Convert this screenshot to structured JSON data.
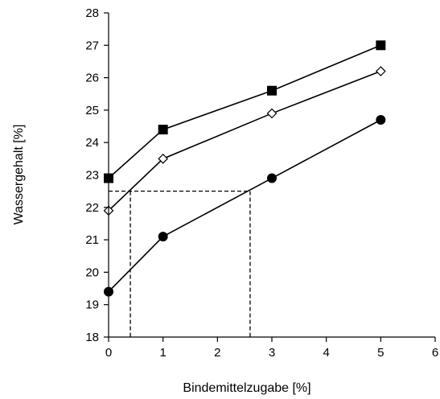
{
  "chart_data": {
    "type": "line",
    "title": "",
    "xlabel": "Bindemittelzugabe [%]",
    "ylabel": "Wassergehalt [%]",
    "xlim": [
      0,
      6
    ],
    "ylim": [
      18,
      28
    ],
    "x_ticks": [
      "0",
      "1",
      "2",
      "3",
      "4",
      "5",
      "6"
    ],
    "y_ticks": [
      "18",
      "19",
      "20",
      "21",
      "22",
      "23",
      "24",
      "25",
      "26",
      "27",
      "28"
    ],
    "grid": false,
    "legend": "none",
    "series": [
      {
        "marker": "square",
        "fill": "#000000",
        "x": [
          0,
          1,
          3,
          5
        ],
        "y": [
          22.9,
          24.4,
          25.6,
          27.0
        ]
      },
      {
        "marker": "diamond",
        "fill": "#ffffff",
        "x": [
          0,
          1,
          3,
          5
        ],
        "y": [
          21.9,
          23.5,
          24.9,
          26.2
        ]
      },
      {
        "marker": "circle",
        "fill": "#000000",
        "x": [
          0,
          1,
          3,
          5
        ],
        "y": [
          19.4,
          21.1,
          22.9,
          24.7
        ]
      }
    ],
    "reference_lines": {
      "style": "dashed",
      "y": 22.5,
      "x": [
        0.4,
        2.6
      ]
    }
  }
}
